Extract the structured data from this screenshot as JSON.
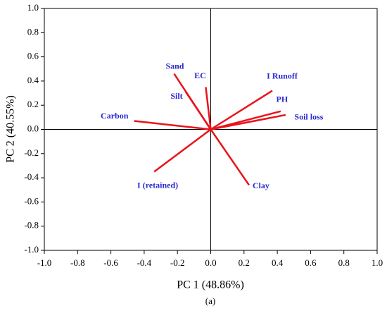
{
  "chart_data": {
    "type": "biplot",
    "x_label": "PC 1 (48.86%)",
    "y_label": "PC 2 (40.55%)",
    "caption": "(a)",
    "color": "#e8141c",
    "label_color": "#2a2ad0",
    "xlim": [
      -1,
      1
    ],
    "ylim": [
      -1,
      1
    ],
    "xticks": [
      {
        "value": -1,
        "label": "-1.0"
      },
      {
        "value": -0.8,
        "label": "-0.8"
      },
      {
        "value": -0.6,
        "label": "-0.6"
      },
      {
        "value": -0.4,
        "label": "-0.4"
      },
      {
        "value": -0.2,
        "label": "-0.2"
      },
      {
        "value": 0,
        "label": "0.0"
      },
      {
        "value": 0.2,
        "label": "0.2"
      },
      {
        "value": 0.4,
        "label": "0.4"
      },
      {
        "value": 0.6,
        "label": "0.6"
      },
      {
        "value": 0.8,
        "label": "0.8"
      },
      {
        "value": 1,
        "label": "1.0"
      }
    ],
    "yticks": [
      {
        "value": -1,
        "label": "-1.0"
      },
      {
        "value": -0.8,
        "label": "-0.8"
      },
      {
        "value": -0.6,
        "label": "-0.6"
      },
      {
        "value": -0.4,
        "label": "-0.4"
      },
      {
        "value": -0.2,
        "label": "-0.2"
      },
      {
        "value": 0,
        "label": "0.0"
      },
      {
        "value": 0.2,
        "label": "0.2"
      },
      {
        "value": 0.4,
        "label": "0.4"
      },
      {
        "value": 0.6,
        "label": "0.6"
      },
      {
        "value": 0.8,
        "label": "0.8"
      },
      {
        "value": 1,
        "label": "1.0"
      }
    ],
    "vectors": [
      {
        "name": "Sand",
        "x": -0.22,
        "y": 0.46
      },
      {
        "name": "Silt",
        "x": -0.15,
        "y": 0.31
      },
      {
        "name": "EC",
        "x": -0.03,
        "y": 0.35
      },
      {
        "name": "I  Runoff",
        "x": 0.37,
        "y": 0.32
      },
      {
        "name": "PH",
        "x": 0.42,
        "y": 0.15
      },
      {
        "name": "Soil loss",
        "x": 0.45,
        "y": 0.12
      },
      {
        "name": "Carbon",
        "x": -0.46,
        "y": 0.07
      },
      {
        "name": "I (retained)",
        "x": -0.34,
        "y": -0.35
      },
      {
        "name": "Clay",
        "x": 0.23,
        "y": -0.46
      }
    ]
  }
}
